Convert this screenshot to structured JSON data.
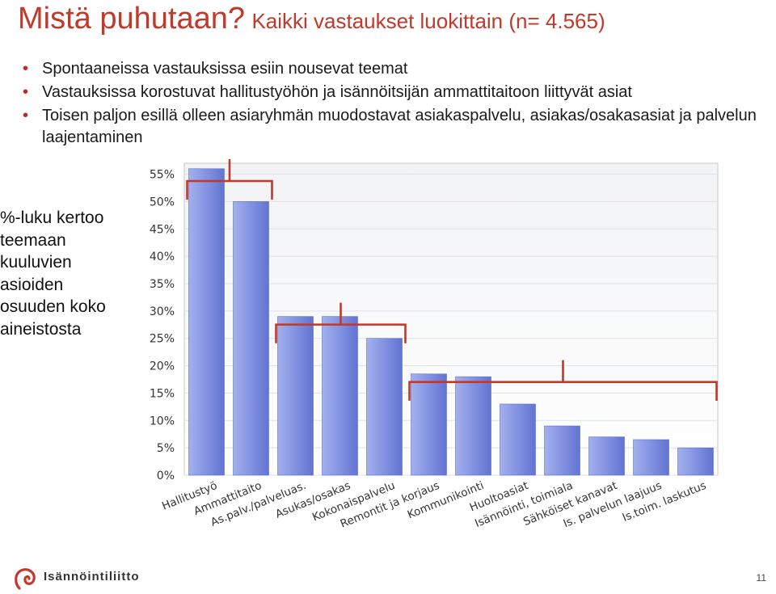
{
  "slide": {
    "title_main": "Mistä puhutaan?",
    "title_sub": "Kaikki vastaukset luokittain (n= 4.565)",
    "bullets": [
      "Spontaaneissa vastauksissa esiin nousevat teemat",
      "Vastauksissa korostuvat hallitustyöhön ja isännöitsijän ammattitaitoon liittyvät asiat",
      "Toisen paljon esillä olleen asiaryhmän muodostavat asiakaspalvelu, asiakas/osakasasiat ja palvelun laajentaminen"
    ],
    "side_note": "%-luku kertoo teemaan kuuluvien asioiden osuuden koko aineistosta",
    "footer_org": "Isännöintiliitto",
    "page_number": "11"
  },
  "colors": {
    "title": "#c0392b",
    "bullet": "#d11f1f",
    "bar_light": "#a3b1ee",
    "bar_dark": "#6273d2",
    "bracket": "#c0392b",
    "logo": "#c0392b"
  },
  "chart_data": {
    "type": "bar",
    "categories": [
      "Hallitustyö",
      "Ammattitaito",
      "As.palv./palveluas.",
      "Asukas/osakas",
      "Kokonaispalvelu",
      "Remontit ja korjaus",
      "Kommunikointi",
      "Huoltoasiat",
      "Isännöinti, toimiala",
      "Sähköiset kanavat",
      "Is. palvelun laajuus",
      "Is.toim. laskutus"
    ],
    "values": [
      56,
      50,
      29,
      29,
      25,
      18.5,
      18,
      13,
      9,
      7,
      6.5,
      5
    ],
    "value_format": "percent",
    "yticks": [
      "0%",
      "5%",
      "10%",
      "15%",
      "20%",
      "25%",
      "30%",
      "35%",
      "40%",
      "45%",
      "50%",
      "55%"
    ],
    "ylim": [
      0,
      57
    ],
    "grid": true,
    "groups": [
      [
        0,
        1
      ],
      [
        2,
        4
      ],
      [
        5,
        11
      ]
    ]
  }
}
